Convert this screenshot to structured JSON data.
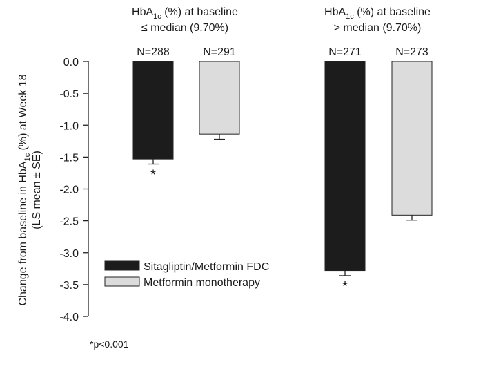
{
  "chart_data": {
    "type": "bar",
    "ylabel_line1": "Change from baseline in HbA1c (%) at Week 18",
    "ylabel_line2": "(LS mean ± SE)",
    "ylim": [
      -4.0,
      0.0
    ],
    "yticks": [
      "0.0",
      "-0.5",
      "-1.0",
      "-1.5",
      "-2.0",
      "-2.5",
      "-3.0",
      "-3.5",
      "-4.0"
    ],
    "groups": [
      {
        "line1": "HbA1c (%) at baseline",
        "line2": "≤ median (9.70%)",
        "n": [
          "N=288",
          "N=291"
        ]
      },
      {
        "line1": "HbA1c (%) at baseline",
        "line2": "> median (9.70%)",
        "n": [
          "N=271",
          "N=273"
        ]
      }
    ],
    "series": [
      {
        "name": "Sitagliptin/Metformin FDC",
        "color": "#1c1c1c",
        "values": [
          -1.53,
          -3.28
        ],
        "se": [
          0.08,
          0.08
        ],
        "marker": [
          "*",
          "*"
        ]
      },
      {
        "name": "Metformin monotherapy",
        "color": "#dcdcdc",
        "values": [
          -1.14,
          -2.41
        ],
        "se": [
          0.08,
          0.08
        ],
        "marker": [
          "",
          ""
        ]
      }
    ],
    "grid": false,
    "legend_position": "bottom-left",
    "footnote": "*p<0.001"
  }
}
